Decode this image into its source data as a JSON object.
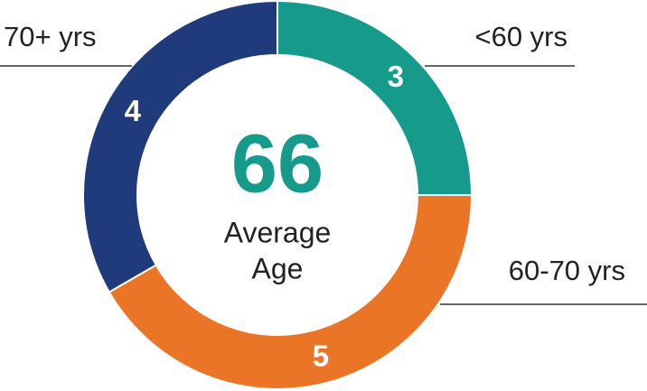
{
  "chart_data": {
    "type": "donut",
    "categories": [
      "<60 yrs",
      "60-70 yrs",
      "70+ yrs"
    ],
    "values": [
      3,
      5,
      4
    ],
    "colors": [
      "#159a8c",
      "#eb7526",
      "#1f3b7b"
    ],
    "center_value": 66,
    "center_label": [
      "Average",
      "Age"
    ]
  }
}
